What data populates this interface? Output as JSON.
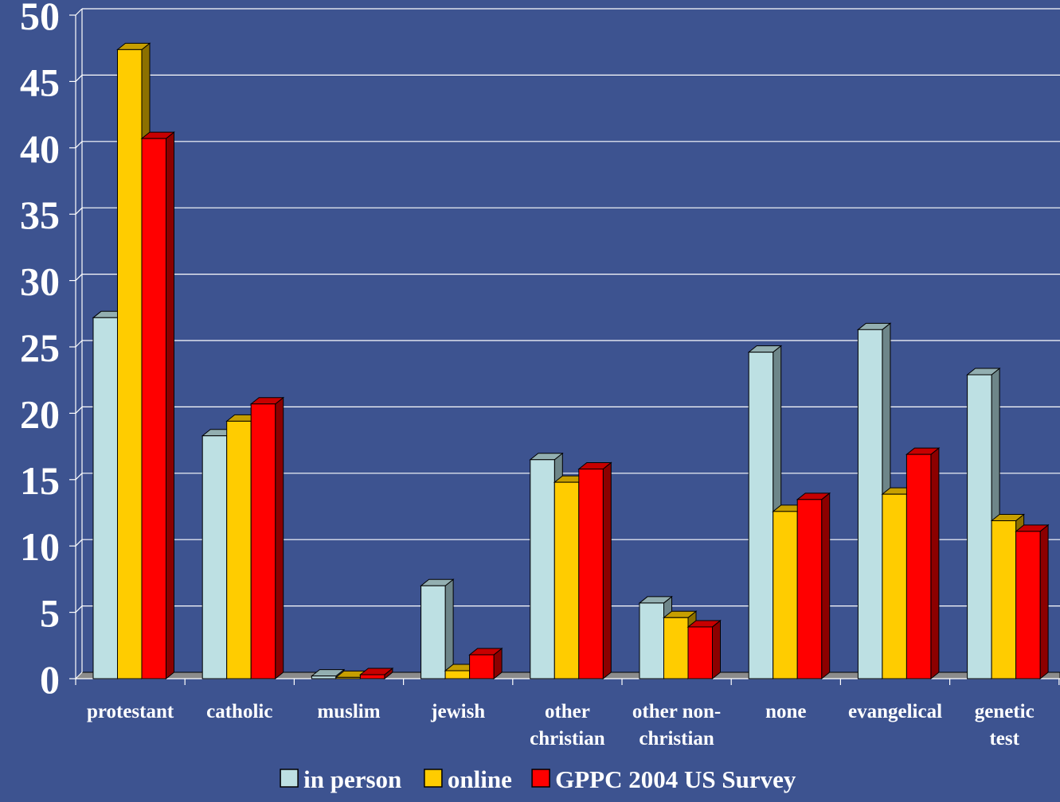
{
  "chart_data": {
    "type": "bar",
    "title": "",
    "xlabel": "",
    "ylabel": "",
    "ylim": [
      0,
      50
    ],
    "yticks": [
      0,
      5,
      10,
      15,
      20,
      25,
      30,
      35,
      40,
      45,
      50
    ],
    "grid": true,
    "legend_position": "bottom",
    "categories": [
      [
        "protestant"
      ],
      [
        "catholic"
      ],
      [
        "muslim"
      ],
      [
        "jewish"
      ],
      [
        "other",
        "christian"
      ],
      [
        "other non-",
        "christian"
      ],
      [
        "none"
      ],
      [
        "evangelical"
      ],
      [
        "genetic",
        "test"
      ]
    ],
    "series": [
      {
        "name": "in person",
        "color": "#bde0e3",
        "values": [
          27.2,
          18.3,
          0.2,
          7.0,
          16.5,
          5.7,
          24.6,
          26.3,
          22.9
        ]
      },
      {
        "name": "online",
        "color": "#ffcc00",
        "values": [
          47.4,
          19.4,
          0.1,
          0.6,
          14.8,
          4.6,
          12.6,
          13.9,
          11.9
        ]
      },
      {
        "name": "GPPC 2004 US Survey",
        "color": "#ff0000",
        "values": [
          40.7,
          20.7,
          0.3,
          1.8,
          15.8,
          3.9,
          13.5,
          16.9,
          11.1
        ]
      }
    ]
  }
}
